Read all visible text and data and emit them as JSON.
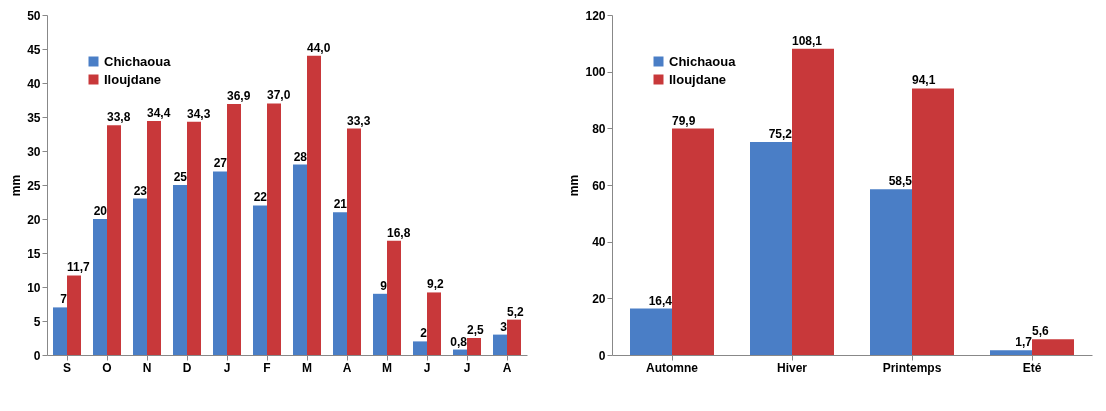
{
  "chart_data": [
    {
      "type": "bar",
      "ylabel": "mm",
      "categories": [
        "S",
        "O",
        "N",
        "D",
        "J",
        "F",
        "M",
        "A",
        "M",
        "J",
        "J",
        "A"
      ],
      "ylim": [
        0,
        50
      ],
      "yticks": [
        0,
        5,
        10,
        15,
        20,
        25,
        30,
        35,
        40,
        45,
        50
      ],
      "legend": "top left",
      "grid": false,
      "series": [
        {
          "name": "Chichaoua",
          "color": "#4a7ec6",
          "values": [
            7,
            20,
            23,
            25,
            27,
            22,
            28,
            21,
            9,
            2,
            0.8,
            3
          ],
          "value_labels": [
            "7",
            "20",
            "23",
            "25",
            "27",
            "22",
            "28",
            "21",
            "9",
            "2",
            "0,8",
            "3"
          ]
        },
        {
          "name": "Iloujdane",
          "color": "#c8383a",
          "values": [
            11.7,
            33.8,
            34.4,
            34.3,
            36.9,
            37.0,
            44.0,
            33.3,
            16.8,
            9.2,
            2.5,
            5.2
          ],
          "value_labels": [
            "11,7",
            "33,8",
            "34,4",
            "34,3",
            "36,9",
            "37,0",
            "44,0",
            "33,3",
            "16,8",
            "9,2",
            "2,5",
            "5,2"
          ]
        }
      ]
    },
    {
      "type": "bar",
      "ylabel": "mm",
      "categories": [
        "Automne",
        "Hiver",
        "Printemps",
        "Eté"
      ],
      "ylim": [
        0,
        120
      ],
      "yticks": [
        0,
        20,
        40,
        60,
        80,
        100,
        120
      ],
      "legend": "top left",
      "grid": false,
      "series": [
        {
          "name": "Chichaoua",
          "color": "#4a7ec6",
          "values": [
            16.4,
            75.2,
            58.5,
            1.7
          ],
          "value_labels": [
            "16,4",
            "75,2",
            "58,5",
            "1,7"
          ]
        },
        {
          "name": "Iloujdane",
          "color": "#c8383a",
          "values": [
            79.9,
            108.1,
            94.1,
            5.6
          ],
          "value_labels": [
            "79,9",
            "108,1",
            "94,1",
            "5,6"
          ]
        }
      ]
    }
  ]
}
